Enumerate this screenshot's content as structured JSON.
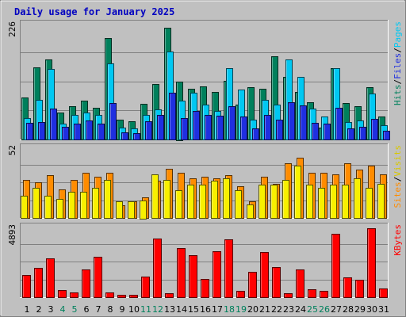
{
  "title": "Daily usage for January 2025",
  "chart_data": [
    {
      "type": "bar",
      "panel": "top",
      "max_label": "226",
      "ylim": [
        0,
        226
      ],
      "series": [
        {
          "name": "Hits",
          "color": "#00805c",
          "values": [
            82,
            140,
            155,
            52,
            64,
            75,
            62,
            197,
            38,
            36,
            69,
            108,
            217,
            113,
            99,
            103,
            92,
            114,
            67,
            101,
            98,
            161,
            122,
            92,
            72,
            23,
            139,
            70,
            65,
            101,
            45
          ]
        },
        {
          "name": "Files",
          "color": "#00c8f2",
          "values": [
            41,
            77,
            137,
            31,
            47,
            53,
            47,
            147,
            23,
            21,
            47,
            59,
            171,
            75,
            90,
            68,
            55,
            138,
            97,
            38,
            77,
            68,
            156,
            121,
            60,
            44,
            138,
            34,
            37,
            89,
            27
          ]
        },
        {
          "name": "Pages",
          "color": "#1f2fe0",
          "values": [
            33,
            34,
            60,
            24,
            30,
            37,
            30,
            70,
            14,
            12,
            35,
            47,
            90,
            42,
            56,
            48,
            46,
            64,
            45,
            22,
            48,
            38,
            73,
            66,
            33,
            30,
            62,
            21,
            24,
            40,
            17
          ]
        }
      ],
      "legend": [
        "Hits",
        "/",
        "Files",
        "/",
        "Pages"
      ]
    },
    {
      "type": "bar",
      "panel": "middle",
      "max_label": "52",
      "ylim": [
        0,
        52
      ],
      "series": [
        {
          "name": "Visits",
          "color": "#ff8c00",
          "values": [
            28,
            26,
            31,
            21,
            28,
            33,
            30,
            33,
            9,
            12,
            15,
            27,
            36,
            33,
            29,
            30,
            29,
            31,
            23,
            12,
            30,
            25,
            40,
            44,
            33,
            33,
            32,
            40,
            35,
            38,
            32
          ]
        },
        {
          "name": "Sites",
          "color": "#f8f000",
          "values": [
            16,
            22,
            16,
            14,
            19,
            19,
            22,
            28,
            12,
            12,
            13,
            32,
            28,
            20,
            24,
            24,
            27,
            29,
            20,
            10,
            24,
            24,
            28,
            38,
            24,
            22,
            24,
            24,
            29,
            22,
            25
          ]
        }
      ],
      "legend": [
        "Sites",
        "/",
        "Visits"
      ]
    },
    {
      "type": "bar",
      "panel": "bottom",
      "max_label": "4893",
      "ylim": [
        0,
        4893
      ],
      "series": [
        {
          "name": "KBytes",
          "color": "#ff0000",
          "values": [
            1500,
            2000,
            2650,
            480,
            350,
            1900,
            2770,
            310,
            140,
            150,
            1420,
            4030,
            280,
            3390,
            2870,
            1230,
            3150,
            3990,
            420,
            1750,
            3120,
            2070,
            280,
            1890,
            540,
            440,
            4330,
            1380,
            1170,
            4720,
            580
          ]
        }
      ],
      "legend": [
        "KBytes"
      ]
    }
  ],
  "days": [
    "1",
    "2",
    "3",
    "4",
    "5",
    "6",
    "7",
    "8",
    "9",
    "10",
    "11",
    "12",
    "13",
    "14",
    "15",
    "16",
    "17",
    "18",
    "19",
    "20",
    "21",
    "22",
    "23",
    "24",
    "25",
    "26",
    "27",
    "28",
    "29",
    "30",
    "31"
  ],
  "weekend_days": [
    4,
    5,
    11,
    12,
    18,
    19,
    25,
    26
  ],
  "weekend_color": "#00805c",
  "weekday_color": "#000000",
  "title_color": "#0000c0"
}
